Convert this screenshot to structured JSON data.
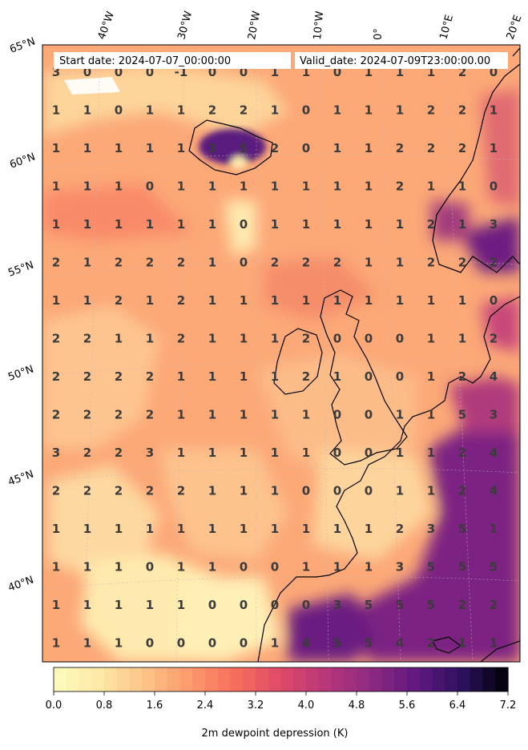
{
  "header": {
    "start_text": "Start date: 2024-07-07_00:00:00",
    "valid_text": "Valid_date: 2024-07-09T23:00:00.00"
  },
  "lon_labels": [
    "40°W",
    "30°W",
    "20°W",
    "10°W",
    "0°",
    "10°E",
    "20°E"
  ],
  "lat_labels": [
    "65°N",
    "60°N",
    "55°N",
    "50°N",
    "45°N",
    "40°N"
  ],
  "grid_values": [
    [
      3,
      0,
      0,
      0,
      -1,
      0,
      0,
      1,
      1,
      0,
      1,
      1,
      1,
      2,
      0
    ],
    [
      1,
      1,
      0,
      1,
      1,
      2,
      2,
      1,
      0,
      1,
      1,
      1,
      2,
      2,
      1
    ],
    [
      1,
      1,
      1,
      1,
      1,
      3,
      5,
      2,
      0,
      1,
      1,
      2,
      2,
      2,
      1
    ],
    [
      1,
      1,
      1,
      0,
      1,
      1,
      1,
      1,
      1,
      1,
      1,
      2,
      1,
      1,
      0
    ],
    [
      1,
      1,
      1,
      1,
      1,
      1,
      0,
      1,
      1,
      1,
      1,
      1,
      2,
      1,
      3
    ],
    [
      2,
      1,
      2,
      2,
      2,
      1,
      0,
      2,
      2,
      2,
      1,
      1,
      2,
      2,
      2
    ],
    [
      1,
      1,
      2,
      1,
      2,
      1,
      1,
      1,
      1,
      1,
      1,
      1,
      1,
      1,
      0
    ],
    [
      2,
      2,
      1,
      1,
      2,
      1,
      1,
      1,
      2,
      0,
      0,
      0,
      1,
      1,
      2
    ],
    [
      2,
      2,
      2,
      2,
      1,
      1,
      1,
      1,
      2,
      1,
      0,
      0,
      1,
      2,
      4
    ],
    [
      2,
      2,
      2,
      2,
      1,
      1,
      1,
      1,
      1,
      0,
      0,
      1,
      1,
      5,
      3
    ],
    [
      3,
      2,
      2,
      3,
      1,
      1,
      1,
      1,
      1,
      0,
      0,
      1,
      1,
      2,
      4
    ],
    [
      2,
      2,
      2,
      2,
      2,
      1,
      1,
      1,
      0,
      0,
      0,
      1,
      1,
      2,
      4
    ],
    [
      1,
      1,
      1,
      1,
      1,
      1,
      1,
      1,
      1,
      1,
      1,
      2,
      3,
      5,
      1
    ],
    [
      1,
      1,
      1,
      0,
      1,
      1,
      0,
      0,
      1,
      1,
      1,
      3,
      5,
      5,
      5
    ],
    [
      1,
      1,
      1,
      1,
      1,
      0,
      0,
      0,
      0,
      3,
      5,
      5,
      5,
      2,
      2
    ],
    [
      1,
      1,
      1,
      0,
      0,
      0,
      0,
      1,
      4,
      5,
      5,
      4,
      2,
      1,
      1
    ]
  ],
  "colorbar": {
    "label": "2m dewpoint depression (K)",
    "ticks": [
      "0.0",
      "0.8",
      "1.6",
      "2.4",
      "3.2",
      "4.0",
      "4.8",
      "5.6",
      "6.4",
      "7.2"
    ],
    "colormap": "magma_r",
    "min": 0.0,
    "max": 7.2
  },
  "colors": {
    "background_field": "#fcae7a",
    "low": "#fdefb2",
    "high": "#5f1a7f",
    "coast": "#000000",
    "label_text": "#3b3b3b"
  }
}
